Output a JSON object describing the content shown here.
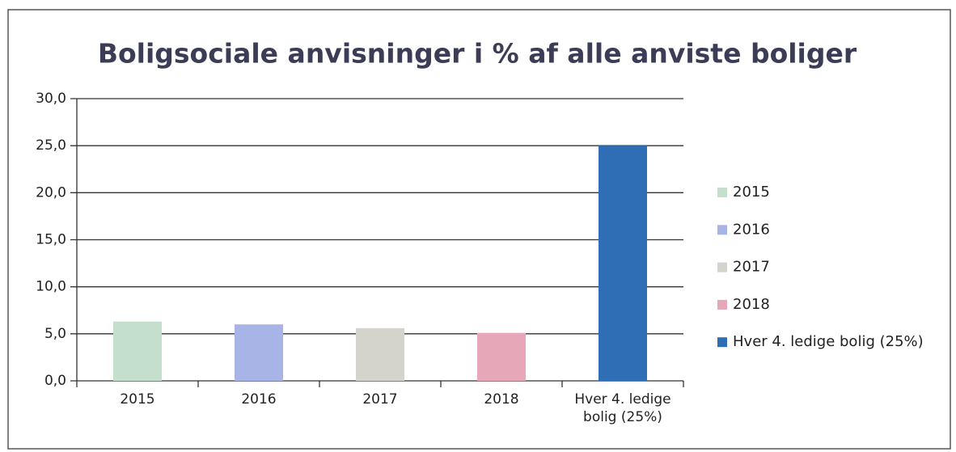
{
  "chart_data": {
    "type": "bar",
    "title": "Boligsociale anvisninger i % af alle anviste boliger",
    "categories": [
      "2015",
      "2016",
      "2017",
      "2018",
      "Hver 4. ledige bolig (25%)"
    ],
    "values": [
      6.3,
      6.0,
      5.6,
      5.1,
      25.0
    ],
    "colors": [
      "#c4dfcc",
      "#a8b3e6",
      "#d4d4cc",
      "#e6a8b8",
      "#2f6db5"
    ],
    "ylim": [
      0,
      30
    ],
    "yticks": [
      {
        "value": 0,
        "label": "0,0"
      },
      {
        "value": 5,
        "label": "5,0"
      },
      {
        "value": 10,
        "label": "10,0"
      },
      {
        "value": 15,
        "label": "15,0"
      },
      {
        "value": 20,
        "label": "20,0"
      },
      {
        "value": 25,
        "label": "25,0"
      },
      {
        "value": 30,
        "label": "30,0"
      }
    ],
    "grid": true,
    "legend": "right"
  }
}
